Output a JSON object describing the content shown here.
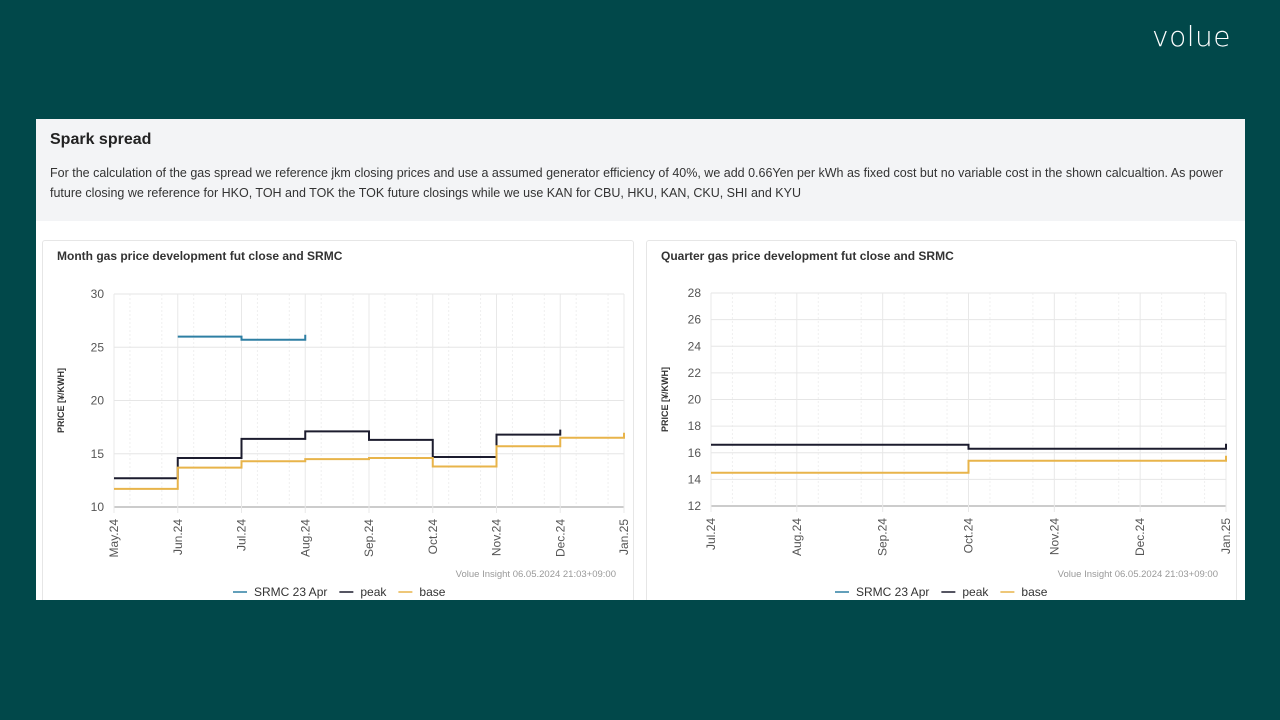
{
  "brand": {
    "logo": "volue"
  },
  "section": {
    "title": "Spark spread",
    "description": "For the calculation of the gas spread we reference jkm closing prices and use a assumed generator efficiency of 40%, we add 0.66Yen per kWh as fixed cost but no variable cost in the shown calcualtion. As power future closing we reference for HKO, TOH and TOK the TOK future closings while we use KAN for CBU, HKU, KAN, CKU, SHI and KYU"
  },
  "colors": {
    "srmc": "#2e7fa3",
    "peak": "#1c1c2e",
    "base": "#e8b44a",
    "grid": "#e6e6e6"
  },
  "chart_data": [
    {
      "type": "line",
      "step": true,
      "title": "Month gas price development fut close and SRMC",
      "ylabel": "PRICE [¥/KWH]",
      "xlabel": "",
      "ylim": [
        10,
        30
      ],
      "yticks": [
        10,
        15,
        20,
        25,
        30
      ],
      "xticks": [
        "May.24",
        "Jun.24",
        "Jul.24",
        "Aug.24",
        "Sep.24",
        "Oct.24",
        "Nov.24",
        "Dec.24",
        "Jan.25"
      ],
      "grid": true,
      "legend": "bottom",
      "credit": "Volue Insight 06.05.2024 21:03+09:00",
      "series": [
        {
          "name": "SRMC 23 Apr",
          "x": [
            "Jun.24",
            "Jul.24"
          ],
          "y": [
            26.0,
            25.7
          ],
          "end": "Aug.24"
        },
        {
          "name": "peak",
          "x": [
            "May.24",
            "Jun.24",
            "Jul.24",
            "Aug.24",
            "Sep.24",
            "Oct.24",
            "Nov.24"
          ],
          "y": [
            12.7,
            14.6,
            16.4,
            17.1,
            16.3,
            14.7,
            16.8
          ],
          "end": "Dec.24"
        },
        {
          "name": "base",
          "x": [
            "May.24",
            "Jun.24",
            "Jul.24",
            "Aug.24",
            "Sep.24",
            "Oct.24",
            "Nov.24",
            "Dec.24"
          ],
          "y": [
            11.7,
            13.7,
            14.3,
            14.5,
            14.6,
            13.8,
            15.7,
            16.5
          ],
          "end": "Jan.25"
        }
      ]
    },
    {
      "type": "line",
      "step": true,
      "title": "Quarter gas price development fut close and SRMC",
      "ylabel": "PRICE [¥/KWH]",
      "xlabel": "",
      "ylim": [
        12,
        28
      ],
      "yticks": [
        12,
        14,
        16,
        18,
        20,
        22,
        24,
        26,
        28
      ],
      "xticks": [
        "Jul.24",
        "Aug.24",
        "Sep.24",
        "Oct.24",
        "Nov.24",
        "Dec.24",
        "Jan.25"
      ],
      "grid": true,
      "legend": "bottom",
      "credit": "Volue Insight 06.05.2024 21:03+09:00",
      "series": [
        {
          "name": "SRMC 23 Apr",
          "x": [],
          "y": [],
          "end": ""
        },
        {
          "name": "peak",
          "x": [
            "Jul.24",
            "Oct.24"
          ],
          "y": [
            16.6,
            16.3
          ],
          "end": "Jan.25"
        },
        {
          "name": "base",
          "x": [
            "Jul.24",
            "Oct.24"
          ],
          "y": [
            14.5,
            15.4
          ],
          "end": "Jan.25"
        }
      ]
    }
  ]
}
